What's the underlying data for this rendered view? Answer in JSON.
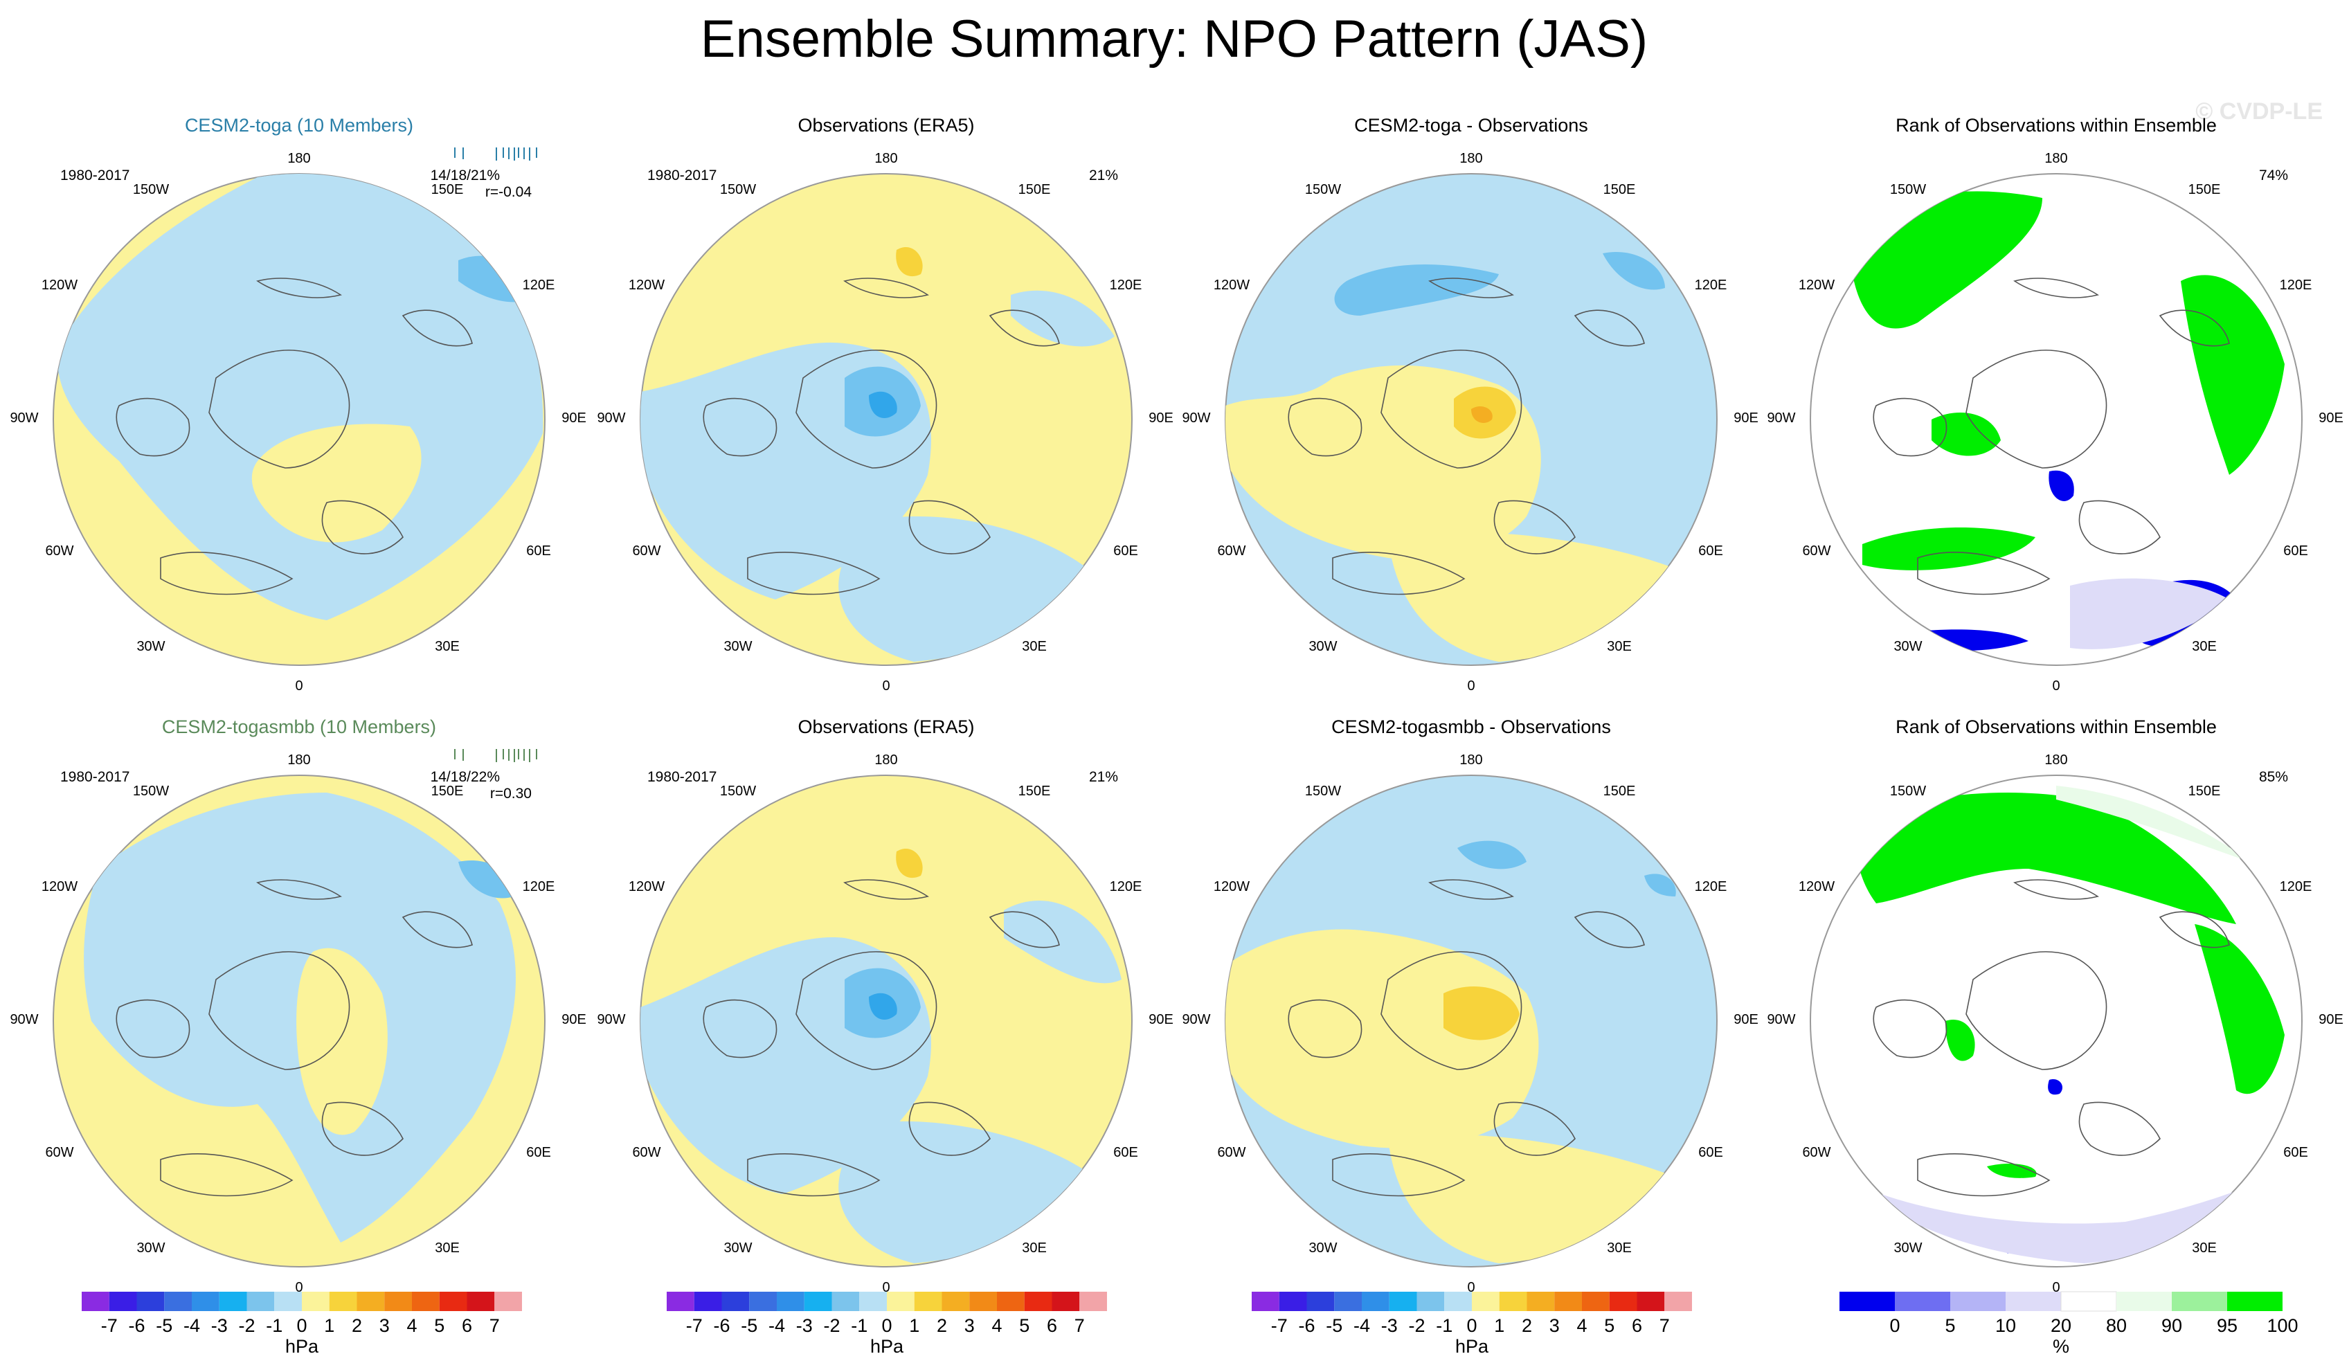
{
  "title": "Ensemble Summary: NPO Pattern (JAS)",
  "watermark": "© CVDP-LE",
  "longitude_labels": [
    "180",
    "150E",
    "120E",
    "90E",
    "60E",
    "30E",
    "0",
    "30W",
    "60W",
    "90W",
    "120W",
    "150W"
  ],
  "colors": {
    "water": "#ffffff",
    "pos1": "#fbf39a",
    "neg1": "#b8e0f4",
    "neg2": "#73c3ef",
    "neg3": "#31a6ea",
    "neg4": "#1fb6f0",
    "pos2": "#f7d33b",
    "pos3": "#f4ae22",
    "rank_hi": "#00ee00",
    "rank_lo": "#0000ee",
    "rank_mid": "#dedcf8",
    "rank_pale": "#e9fbe9",
    "ens_toga": "#2a7fa8",
    "ens_smbb": "#5a8a5a"
  },
  "rows": [
    {
      "panels": [
        {
          "kind": "ens",
          "title": "CESM2-toga (10 Members)",
          "period": "1980-2017",
          "stat1": "14/18/21%",
          "stat2": "r=-0.04",
          "bg": "pos1"
        },
        {
          "kind": "obs",
          "title": "Observations (ERA5)",
          "period": "1980-2017",
          "stat1": "21%",
          "bg": "pos1"
        },
        {
          "kind": "diff",
          "title": "CESM2-toga - Observations",
          "bg": "neg1"
        },
        {
          "kind": "rank",
          "title": "Rank of Observations within Ensemble",
          "stat1": "74%",
          "bg": "water"
        }
      ]
    },
    {
      "panels": [
        {
          "kind": "ens",
          "title": "CESM2-togasmbb (10 Members)",
          "period": "1980-2017",
          "stat1": "14/18/22%",
          "stat2": "r=0.30",
          "bg": "pos1"
        },
        {
          "kind": "obs",
          "title": "Observations (ERA5)",
          "period": "1980-2017",
          "stat1": "21%",
          "bg": "pos1"
        },
        {
          "kind": "diff",
          "title": "CESM2-togasmbb - Observations",
          "bg": "neg1"
        },
        {
          "kind": "rank",
          "title": "Rank of Observations within Ensemble",
          "stat1": "85%",
          "bg": "water"
        }
      ]
    }
  ],
  "colorbars": [
    {
      "type": "hPa",
      "unit": "hPa",
      "labels": [
        "-7",
        "-6",
        "-5",
        "-4",
        "-3",
        "-2",
        "-1",
        "0",
        "1",
        "2",
        "3",
        "4",
        "5",
        "6",
        "7"
      ],
      "colors": [
        "#8a2be2",
        "#3a1ee6",
        "#2c3fdc",
        "#3a6fe0",
        "#2f8fe8",
        "#16b0f0",
        "#7cc4ec",
        "#b8e0f4",
        "#fbf39a",
        "#f7d33b",
        "#f4ae22",
        "#f28a17",
        "#ee6512",
        "#e82a12",
        "#d4141a",
        "#f2a4a8"
      ]
    },
    {
      "type": "pct",
      "unit": "%",
      "labels": [
        "0",
        "5",
        "10",
        "20",
        "80",
        "90",
        "95",
        "100"
      ],
      "colors": [
        "#0000ee",
        "#6e6ef2",
        "#b4b4f6",
        "#dedcf8",
        "#ffffff",
        "#e9fbe9",
        "#9cf19c",
        "#00ee00"
      ]
    }
  ]
}
